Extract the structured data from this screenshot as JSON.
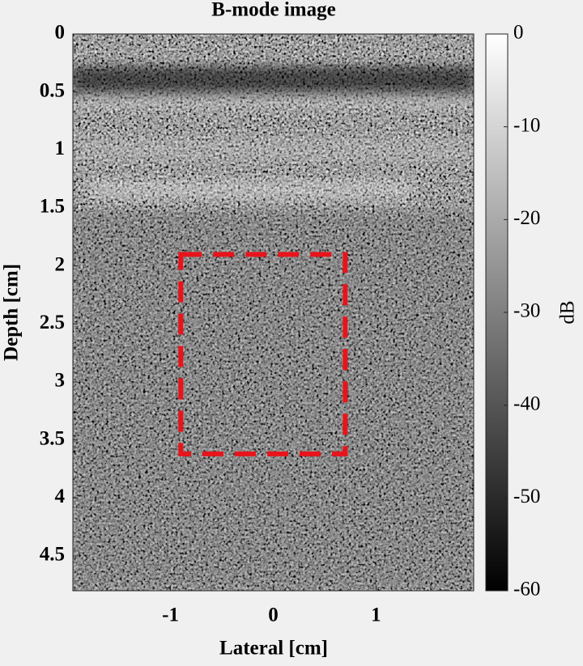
{
  "chart_data": {
    "type": "image",
    "title": "B-mode image",
    "xlabel": "Lateral [cm]",
    "ylabel": "Depth [cm]",
    "xlim": [
      -1.95,
      1.95
    ],
    "xticks": [
      -1,
      0,
      1
    ],
    "ylim": [
      0,
      4.8
    ],
    "yticks": [
      0,
      0.5,
      1,
      1.5,
      2,
      2.5,
      3,
      3.5,
      4,
      4.5
    ],
    "colorbar": {
      "label": "dB",
      "clim": [
        -60,
        0
      ],
      "ticks": [
        0,
        -10,
        -20,
        -30,
        -40,
        -50,
        -60
      ]
    },
    "roi": {
      "x": [
        -0.9,
        0.7
      ],
      "y": [
        1.9,
        3.62
      ],
      "color": "#e8141b"
    }
  }
}
